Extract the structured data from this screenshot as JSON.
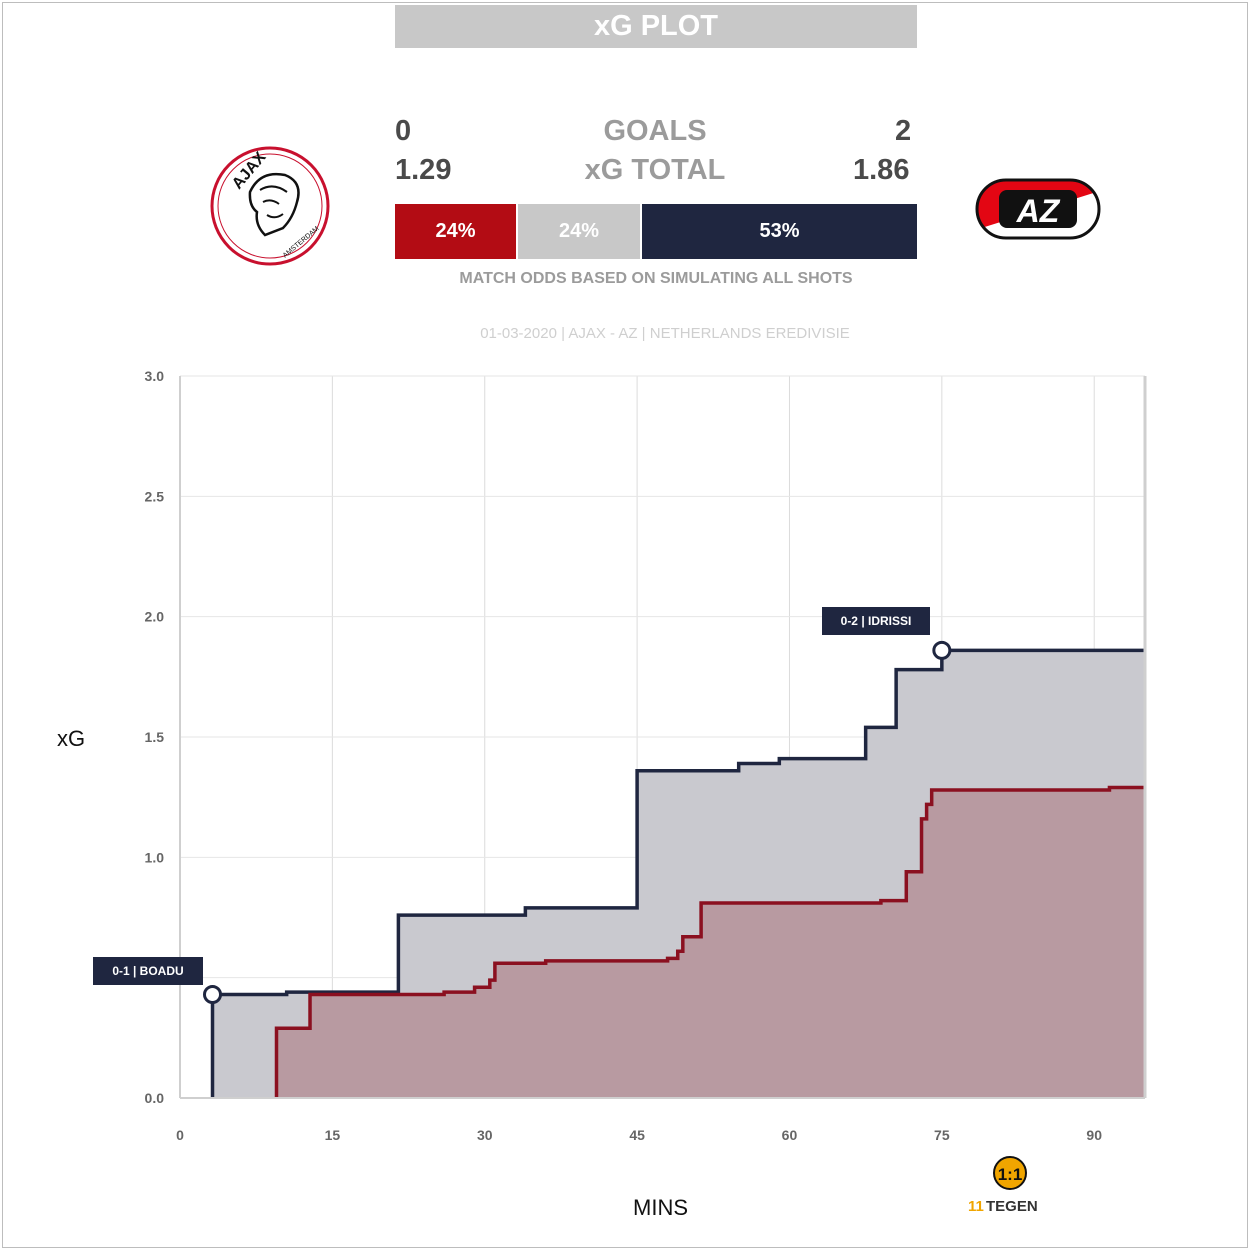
{
  "header": {
    "title": "xG PLOT"
  },
  "teams": {
    "home": {
      "name": "AJAX",
      "goals": "0",
      "xg_total": "1.29",
      "logo_text": "AJAX",
      "logo_subtext": "AMSTERDAM"
    },
    "away": {
      "name": "AZ",
      "goals": "2",
      "xg_total": "1.86",
      "logo_text": "AZ"
    }
  },
  "labels": {
    "goals": "GOALS",
    "xg_total": "xG TOTAL"
  },
  "odds": {
    "home_win": "24%",
    "draw": "24%",
    "away_win": "53%",
    "caption": "MATCH ODDS BASED ON SIMULATING ALL SHOTS"
  },
  "match_info": "01-03-2020 | AJAX - AZ | NETHERLANDS EREDIVISIE",
  "colors": {
    "home": "#8b1020",
    "home_bar": "#b30c14",
    "away": "#1f2640",
    "draw": "#c8c8c8"
  },
  "watermark": {
    "text": "TEGEN",
    "prefix": "11"
  },
  "chart_data": {
    "type": "line",
    "title": "",
    "xlabel": "MINS",
    "ylabel": "xG",
    "xlim": [
      0,
      95
    ],
    "ylim": [
      0,
      3
    ],
    "x_ticks": [
      "0",
      "15",
      "30",
      "45",
      "60",
      "75",
      "90"
    ],
    "y_ticks": [
      "0.0",
      "1.0",
      "1.5",
      "2.0",
      "2.5",
      "3.0"
    ],
    "grid": true,
    "series": [
      {
        "name": "AJAX",
        "color": "#8b1020",
        "fill": "#b89aa1",
        "points": [
          [
            9.5,
            0
          ],
          [
            9.5,
            0.29
          ],
          [
            12.8,
            0.29
          ],
          [
            12.8,
            0.43
          ],
          [
            26,
            0.43
          ],
          [
            26,
            0.44
          ],
          [
            29,
            0.44
          ],
          [
            29,
            0.46
          ],
          [
            30.5,
            0.46
          ],
          [
            30.5,
            0.49
          ],
          [
            31,
            0.49
          ],
          [
            31,
            0.56
          ],
          [
            36,
            0.56
          ],
          [
            36,
            0.57
          ],
          [
            48,
            0.57
          ],
          [
            48,
            0.58
          ],
          [
            49,
            0.58
          ],
          [
            49,
            0.61
          ],
          [
            49.5,
            0.61
          ],
          [
            49.5,
            0.67
          ],
          [
            51.3,
            0.67
          ],
          [
            51.3,
            0.81
          ],
          [
            69,
            0.81
          ],
          [
            69,
            0.82
          ],
          [
            71.5,
            0.82
          ],
          [
            71.5,
            0.94
          ],
          [
            73,
            0.94
          ],
          [
            73,
            1.16
          ],
          [
            73.5,
            1.16
          ],
          [
            73.5,
            1.22
          ],
          [
            74,
            1.22
          ],
          [
            74,
            1.28
          ],
          [
            91.5,
            1.28
          ],
          [
            91.5,
            1.29
          ],
          [
            95,
            1.29
          ]
        ]
      },
      {
        "name": "AZ",
        "color": "#1f2640",
        "fill": "#c9c9cf",
        "points": [
          [
            3.2,
            0
          ],
          [
            3.2,
            0.43
          ],
          [
            10.5,
            0.43
          ],
          [
            10.5,
            0.44
          ],
          [
            21.5,
            0.44
          ],
          [
            21.5,
            0.76
          ],
          [
            34,
            0.76
          ],
          [
            34,
            0.79
          ],
          [
            45,
            0.79
          ],
          [
            45,
            1.36
          ],
          [
            55,
            1.36
          ],
          [
            55,
            1.39
          ],
          [
            59,
            1.39
          ],
          [
            59,
            1.41
          ],
          [
            67.5,
            1.41
          ],
          [
            67.5,
            1.54
          ],
          [
            70.5,
            1.54
          ],
          [
            70.5,
            1.78
          ],
          [
            75,
            1.78
          ],
          [
            75,
            1.86
          ],
          [
            95,
            1.86
          ]
        ]
      }
    ],
    "goals": [
      {
        "label": "0-1 | BOADU",
        "x": 3.2,
        "y": 0.43,
        "team": "AZ"
      },
      {
        "label": "0-2 | IDRISSI",
        "x": 75,
        "y": 1.86,
        "team": "AZ"
      }
    ]
  }
}
